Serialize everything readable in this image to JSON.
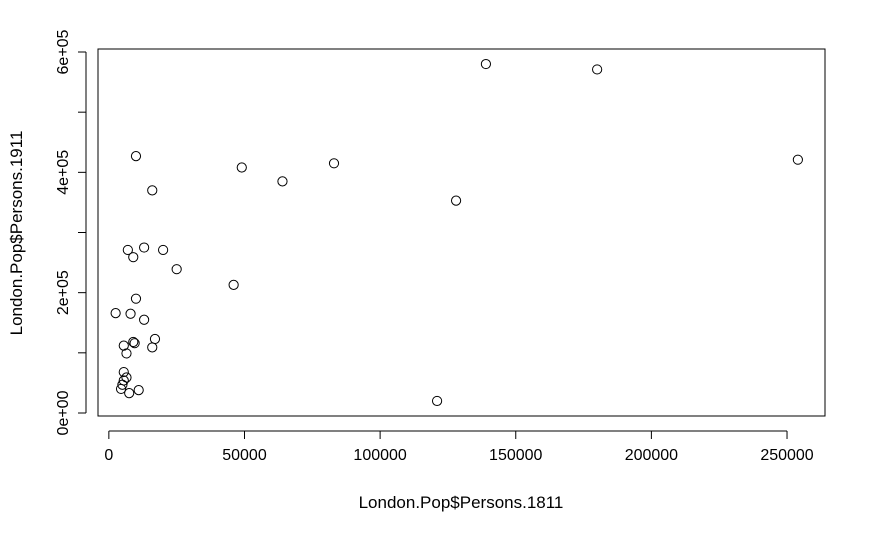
{
  "chart_data": {
    "type": "scatter",
    "title": "",
    "xlabel": "London.Pop$Persons.1811",
    "ylabel": "London.Pop$Persons.1911",
    "xlim": [
      -4000,
      264000
    ],
    "ylim": [
      -5000,
      605000
    ],
    "x_ticks": [
      0,
      50000,
      100000,
      150000,
      200000,
      250000
    ],
    "x_tick_labels": [
      "0",
      "50000",
      "100000",
      "150000",
      "200000",
      "250000"
    ],
    "y_ticks": [
      0,
      100000,
      200000,
      300000,
      400000,
      500000,
      600000
    ],
    "y_tick_labels": [
      "0e+00",
      "",
      "2e+05",
      "",
      "4e+05",
      "",
      "6e+05"
    ],
    "grid": false,
    "legend": "none",
    "marker": "open-circle",
    "color": "#000000",
    "points": [
      {
        "x": 139000,
        "y": 580000
      },
      {
        "x": 180000,
        "y": 571000
      },
      {
        "x": 254000,
        "y": 421000
      },
      {
        "x": 10000,
        "y": 427000
      },
      {
        "x": 49000,
        "y": 408000
      },
      {
        "x": 83000,
        "y": 415000
      },
      {
        "x": 64000,
        "y": 385000
      },
      {
        "x": 16000,
        "y": 370000
      },
      {
        "x": 128000,
        "y": 353000
      },
      {
        "x": 7000,
        "y": 271000
      },
      {
        "x": 13000,
        "y": 275000
      },
      {
        "x": 20000,
        "y": 271000
      },
      {
        "x": 9000,
        "y": 259000
      },
      {
        "x": 25000,
        "y": 239000
      },
      {
        "x": 46000,
        "y": 213000
      },
      {
        "x": 10000,
        "y": 190000
      },
      {
        "x": 2500,
        "y": 166000
      },
      {
        "x": 8000,
        "y": 165000
      },
      {
        "x": 13000,
        "y": 155000
      },
      {
        "x": 17000,
        "y": 123000
      },
      {
        "x": 9000,
        "y": 118000
      },
      {
        "x": 9500,
        "y": 116000
      },
      {
        "x": 5500,
        "y": 112000
      },
      {
        "x": 16000,
        "y": 109000
      },
      {
        "x": 6500,
        "y": 99000
      },
      {
        "x": 5500,
        "y": 68000
      },
      {
        "x": 6500,
        "y": 59000
      },
      {
        "x": 5500,
        "y": 54000
      },
      {
        "x": 5000,
        "y": 47000
      },
      {
        "x": 4500,
        "y": 40000
      },
      {
        "x": 11000,
        "y": 38000
      },
      {
        "x": 7500,
        "y": 33000
      },
      {
        "x": 121000,
        "y": 20000
      }
    ]
  }
}
